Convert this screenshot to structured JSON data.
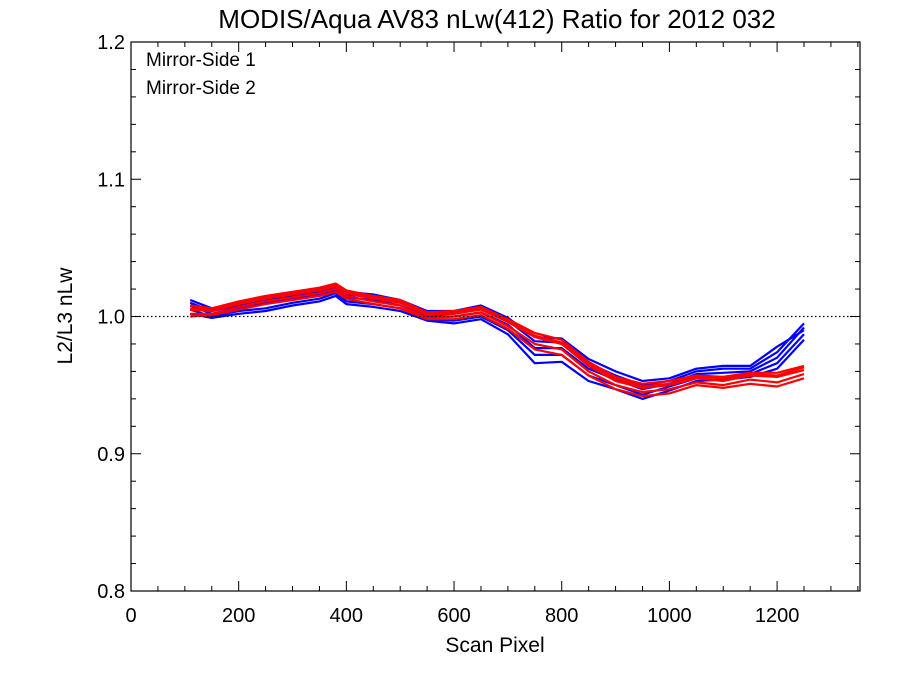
{
  "chart_data": {
    "type": "line",
    "title": "MODIS/Aqua AV83 nLw(412) Ratio for 2012 032",
    "xlabel": "Scan Pixel",
    "ylabel": "L2/L3 nLw",
    "xlim": [
      0,
      1354
    ],
    "ylim": [
      0.8,
      1.2
    ],
    "xticks": [
      0,
      200,
      400,
      600,
      800,
      1000,
      1200
    ],
    "xtick_labels": [
      "0",
      "200",
      "400",
      "600",
      "800",
      "1000",
      "1200"
    ],
    "yticks": [
      0.8,
      0.9,
      1.0,
      1.1,
      1.2
    ],
    "ytick_labels": [
      "0.8",
      "0.9",
      "1.0",
      "1.1",
      "1.2"
    ],
    "reference_line": {
      "y": 1.0,
      "style": "dotted"
    },
    "legend": {
      "placement": "top-left"
    },
    "x": [
      110,
      150,
      200,
      250,
      300,
      350,
      380,
      400,
      450,
      500,
      550,
      600,
      650,
      700,
      750,
      800,
      850,
      900,
      950,
      1000,
      1050,
      1100,
      1150,
      1200,
      1250
    ],
    "series": [
      {
        "name": "Mirror-Side 1",
        "color": "#0000ff",
        "lines": [
          [
            1.008,
            1.002,
            1.006,
            1.01,
            1.013,
            1.016,
            1.019,
            1.014,
            1.012,
            1.008,
            1.0,
            1.0,
            1.003,
            0.994,
            0.977,
            0.977,
            0.962,
            0.954,
            0.947,
            0.951,
            0.958,
            0.959,
            0.96,
            0.97,
            0.992
          ],
          [
            1.005,
            1.0,
            1.004,
            1.006,
            1.01,
            1.013,
            1.017,
            1.011,
            1.009,
            1.006,
            0.998,
            0.997,
            1.0,
            0.99,
            0.972,
            0.972,
            0.957,
            0.95,
            0.943,
            0.949,
            0.955,
            0.956,
            0.958,
            0.966,
            0.987
          ],
          [
            1.01,
            1.004,
            1.008,
            1.012,
            1.015,
            1.018,
            1.021,
            1.016,
            1.014,
            1.01,
            1.002,
            1.002,
            1.006,
            0.997,
            0.982,
            0.981,
            0.966,
            0.957,
            0.95,
            0.953,
            0.96,
            0.962,
            0.962,
            0.974,
            0.995
          ],
          [
            1.002,
            0.999,
            1.002,
            1.004,
            1.008,
            1.011,
            1.015,
            1.009,
            1.007,
            1.004,
            0.997,
            0.995,
            0.998,
            0.987,
            0.966,
            0.967,
            0.953,
            0.947,
            0.94,
            0.946,
            0.953,
            0.954,
            0.956,
            0.962,
            0.983
          ],
          [
            1.012,
            1.006,
            1.009,
            1.014,
            1.017,
            1.02,
            1.023,
            1.018,
            1.016,
            1.012,
            1.004,
            1.004,
            1.008,
            0.999,
            0.985,
            0.984,
            0.969,
            0.96,
            0.953,
            0.955,
            0.962,
            0.964,
            0.964,
            0.978,
            0.99
          ]
        ]
      },
      {
        "name": "Mirror-Side 2",
        "color": "#ff0000",
        "lines": [
          [
            1.005,
            1.004,
            1.009,
            1.013,
            1.016,
            1.019,
            1.022,
            1.017,
            1.013,
            1.01,
            1.001,
            1.002,
            1.005,
            0.996,
            0.985,
            0.98,
            0.964,
            0.953,
            0.948,
            0.95,
            0.955,
            0.953,
            0.957,
            0.956,
            0.961
          ],
          [
            1.002,
            1.002,
            1.007,
            1.011,
            1.014,
            1.017,
            1.02,
            1.015,
            1.011,
            1.008,
            0.999,
            1.0,
            1.003,
            0.993,
            0.98,
            0.976,
            0.96,
            0.95,
            0.945,
            0.947,
            0.952,
            0.95,
            0.954,
            0.952,
            0.958
          ],
          [
            1.008,
            1.006,
            1.011,
            1.015,
            1.018,
            1.021,
            1.024,
            1.019,
            1.015,
            1.012,
            1.003,
            1.004,
            1.007,
            0.998,
            0.988,
            0.983,
            0.967,
            0.956,
            0.951,
            0.953,
            0.957,
            0.956,
            0.959,
            0.959,
            0.964
          ],
          [
            1.0,
            1.001,
            1.005,
            1.009,
            1.012,
            1.015,
            1.018,
            1.013,
            1.009,
            1.006,
            0.998,
            0.998,
            1.001,
            0.991,
            0.976,
            0.972,
            0.957,
            0.947,
            0.942,
            0.944,
            0.95,
            0.948,
            0.951,
            0.949,
            0.955
          ],
          [
            1.006,
            1.005,
            1.01,
            1.014,
            1.017,
            1.02,
            1.023,
            1.018,
            1.014,
            1.011,
            1.002,
            1.003,
            1.006,
            0.997,
            0.986,
            0.981,
            0.965,
            0.955,
            0.949,
            0.951,
            0.956,
            0.955,
            0.958,
            0.957,
            0.963
          ]
        ]
      }
    ]
  }
}
